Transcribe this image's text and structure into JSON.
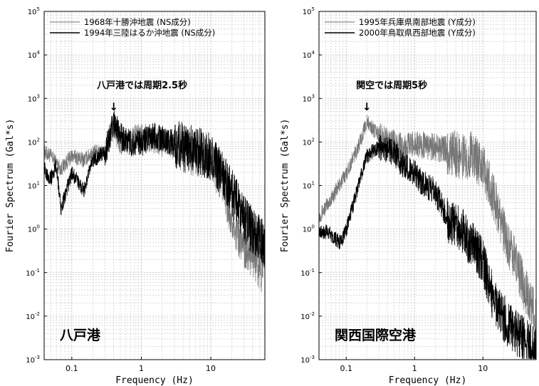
{
  "chart_data": [
    {
      "type": "line",
      "title": "",
      "xlabel": "Frequency (Hz)",
      "ylabel": "Fourier Spectrum (Gal*s)",
      "xscale": "log",
      "yscale": "log",
      "xlim": [
        0.04,
        60
      ],
      "ylim": [
        0.001,
        100000
      ],
      "x_ticks": [
        "0.1",
        "1",
        "10"
      ],
      "y_ticks": [
        "10^-3",
        "10^-2",
        "10^-1",
        "10^0",
        "10^1",
        "10^2",
        "10^3",
        "10^4",
        "10^5"
      ],
      "grid": true,
      "legend_position": "top-left",
      "series": [
        {
          "name": "1968年十勝沖地震 (NS成分)",
          "color": "#777777",
          "x": [
            0.04,
            0.05,
            0.07,
            0.1,
            0.15,
            0.2,
            0.3,
            0.4,
            0.5,
            0.7,
            1,
            1.5,
            2,
            3,
            5,
            7,
            10,
            15,
            20,
            30,
            40,
            60
          ],
          "y": [
            60,
            50,
            25,
            50,
            40,
            60,
            60,
            250,
            100,
            120,
            150,
            120,
            100,
            90,
            70,
            60,
            50,
            10,
            2,
            0.5,
            0.3,
            0.1
          ]
        },
        {
          "name": "1994年三陸はるか沖地震 (NS成分)",
          "color": "#000000",
          "x": [
            0.04,
            0.05,
            0.06,
            0.07,
            0.1,
            0.15,
            0.2,
            0.3,
            0.4,
            0.5,
            0.7,
            1,
            1.5,
            2,
            3,
            5,
            7,
            10,
            15,
            20,
            30,
            40,
            60
          ],
          "y": [
            25,
            15,
            30,
            3,
            20,
            8,
            40,
            60,
            300,
            150,
            100,
            100,
            150,
            130,
            100,
            90,
            70,
            50,
            20,
            8,
            2,
            1,
            0.5
          ]
        }
      ],
      "annotation": "八戸港では周期2.5秒",
      "annotation_x": 0.4,
      "panel_label": "八戸港"
    },
    {
      "type": "line",
      "title": "",
      "xlabel": "Frequency (Hz)",
      "ylabel": "Fourier Spectrum (Gal*s)",
      "xscale": "log",
      "yscale": "log",
      "xlim": [
        0.04,
        60
      ],
      "ylim": [
        0.001,
        100000
      ],
      "x_ticks": [
        "0.1",
        "1",
        "10"
      ],
      "y_ticks": [
        "10^-3",
        "10^-2",
        "10^-1",
        "10^0",
        "10^1",
        "10^2",
        "10^3",
        "10^4",
        "10^5"
      ],
      "grid": true,
      "legend_position": "top-left",
      "series": [
        {
          "name": "1995年兵庫県南部地震 (Y成分)",
          "color": "#777777",
          "x": [
            0.04,
            0.06,
            0.1,
            0.15,
            0.2,
            0.25,
            0.3,
            0.5,
            0.7,
            1,
            1.5,
            2,
            3,
            5,
            7,
            10,
            15,
            20,
            30,
            40,
            60
          ],
          "y": [
            2,
            5,
            20,
            80,
            300,
            200,
            150,
            100,
            80,
            100,
            90,
            80,
            70,
            50,
            60,
            30,
            5,
            1,
            0.2,
            0.05,
            0.01
          ]
        },
        {
          "name": "2000年鳥取県西部地震 (Y成分)",
          "color": "#000000",
          "x": [
            0.04,
            0.06,
            0.08,
            0.1,
            0.15,
            0.2,
            0.3,
            0.5,
            0.7,
            1,
            1.5,
            2,
            3,
            5,
            7,
            10,
            15,
            20,
            30,
            40,
            60
          ],
          "y": [
            1,
            0.8,
            0.5,
            1,
            10,
            50,
            80,
            60,
            30,
            20,
            10,
            8,
            2,
            1,
            0.5,
            0.2,
            0.02,
            0.01,
            0.005,
            0.003,
            0.002
          ]
        }
      ],
      "annotation": "関空では周期5秒",
      "annotation_x": 0.2,
      "panel_label": "関西国際空港"
    }
  ]
}
